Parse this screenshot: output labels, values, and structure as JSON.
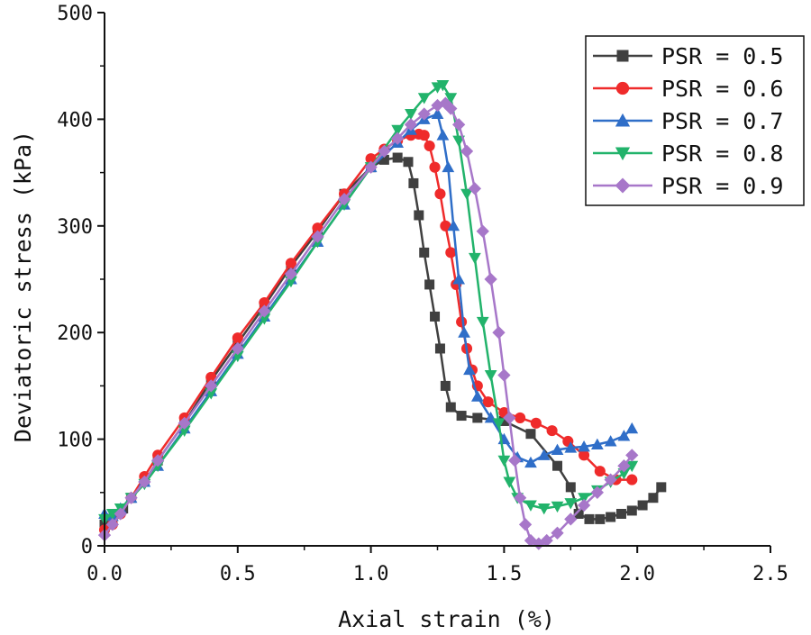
{
  "chart_data": {
    "type": "line",
    "title": "",
    "xlabel": "Axial strain (%)",
    "ylabel": "Deviatoric stress (kPa)",
    "xlim": [
      0,
      2.5
    ],
    "ylim": [
      0,
      500
    ],
    "xticks": [
      0,
      0.5,
      1.0,
      1.5,
      2.0,
      2.5
    ],
    "xtick_labels": [
      "0.0",
      "0.5",
      "1.0",
      "1.5",
      "2.0",
      "2.5"
    ],
    "yticks": [
      0,
      100,
      200,
      300,
      400,
      500
    ],
    "ytick_labels": [
      "0",
      "100",
      "200",
      "300",
      "400",
      "500"
    ],
    "grid": false,
    "legend_position": "top-right",
    "series": [
      {
        "name": "PSR = 0.5",
        "color": "#404040",
        "marker": "square",
        "x": [
          0,
          0.03,
          0.05,
          0.07,
          0.1,
          0.15,
          0.2,
          0.3,
          0.4,
          0.5,
          0.6,
          0.7,
          0.8,
          0.9,
          1.0,
          1.05,
          1.1,
          1.14,
          1.16,
          1.18,
          1.2,
          1.22,
          1.24,
          1.26,
          1.28,
          1.3,
          1.34,
          1.4,
          1.5,
          1.6,
          1.7,
          1.75,
          1.78,
          1.82,
          1.86,
          1.9,
          1.94,
          1.98,
          2.02,
          2.06,
          2.09
        ],
        "y": [
          20,
          25,
          30,
          35,
          45,
          60,
          80,
          115,
          155,
          190,
          225,
          262,
          295,
          330,
          355,
          362,
          364,
          360,
          340,
          310,
          275,
          245,
          215,
          185,
          150,
          130,
          122,
          120,
          117,
          105,
          75,
          55,
          30,
          25,
          25,
          27,
          30,
          33,
          38,
          45,
          55
        ]
      },
      {
        "name": "PSR = 0.6",
        "color": "#ef2b2b",
        "marker": "circle",
        "x": [
          0,
          0.03,
          0.06,
          0.1,
          0.15,
          0.2,
          0.3,
          0.4,
          0.5,
          0.6,
          0.7,
          0.8,
          0.9,
          1.0,
          1.05,
          1.1,
          1.15,
          1.18,
          1.2,
          1.22,
          1.24,
          1.26,
          1.28,
          1.3,
          1.32,
          1.34,
          1.36,
          1.38,
          1.4,
          1.44,
          1.5,
          1.56,
          1.62,
          1.68,
          1.74,
          1.8,
          1.86,
          1.92,
          1.98
        ],
        "y": [
          15,
          20,
          30,
          45,
          65,
          85,
          120,
          158,
          195,
          228,
          265,
          298,
          330,
          363,
          372,
          380,
          385,
          386,
          385,
          375,
          355,
          330,
          300,
          275,
          245,
          210,
          185,
          165,
          150,
          135,
          125,
          120,
          115,
          108,
          98,
          85,
          70,
          62,
          62
        ]
      },
      {
        "name": "PSR = 0.7",
        "color": "#2f6ec8",
        "marker": "triangle-up",
        "x": [
          0,
          0.03,
          0.06,
          0.1,
          0.15,
          0.2,
          0.3,
          0.4,
          0.5,
          0.6,
          0.7,
          0.8,
          0.9,
          1.0,
          1.1,
          1.15,
          1.2,
          1.25,
          1.27,
          1.29,
          1.31,
          1.33,
          1.35,
          1.37,
          1.4,
          1.45,
          1.5,
          1.55,
          1.6,
          1.65,
          1.7,
          1.75,
          1.8,
          1.85,
          1.9,
          1.95,
          1.98
        ],
        "y": [
          30,
          28,
          35,
          45,
          60,
          75,
          110,
          145,
          180,
          215,
          250,
          285,
          320,
          355,
          378,
          390,
          400,
          405,
          385,
          355,
          300,
          250,
          200,
          165,
          140,
          120,
          100,
          83,
          78,
          85,
          90,
          92,
          93,
          95,
          98,
          103,
          110
        ]
      },
      {
        "name": "PSR = 0.8",
        "color": "#22b36b",
        "marker": "triangle-down",
        "x": [
          0,
          0.03,
          0.06,
          0.1,
          0.15,
          0.2,
          0.3,
          0.4,
          0.5,
          0.6,
          0.7,
          0.8,
          0.9,
          1.0,
          1.1,
          1.15,
          1.2,
          1.25,
          1.27,
          1.3,
          1.33,
          1.36,
          1.39,
          1.42,
          1.45,
          1.48,
          1.5,
          1.52,
          1.55,
          1.6,
          1.65,
          1.7,
          1.75,
          1.8,
          1.85,
          1.9,
          1.95,
          1.98
        ],
        "y": [
          25,
          30,
          35,
          45,
          58,
          75,
          108,
          143,
          178,
          213,
          248,
          285,
          320,
          355,
          390,
          405,
          420,
          430,
          432,
          420,
          380,
          330,
          270,
          210,
          160,
          115,
          80,
          60,
          45,
          38,
          35,
          37,
          40,
          45,
          52,
          60,
          68,
          75
        ]
      },
      {
        "name": "PSR = 0.9",
        "color": "#a777c9",
        "marker": "diamond",
        "x": [
          0,
          0.03,
          0.06,
          0.1,
          0.15,
          0.2,
          0.3,
          0.4,
          0.5,
          0.6,
          0.7,
          0.8,
          0.9,
          1.0,
          1.05,
          1.1,
          1.15,
          1.2,
          1.25,
          1.28,
          1.3,
          1.33,
          1.36,
          1.39,
          1.42,
          1.45,
          1.48,
          1.5,
          1.52,
          1.54,
          1.56,
          1.58,
          1.6,
          1.63,
          1.66,
          1.7,
          1.75,
          1.8,
          1.85,
          1.9,
          1.95,
          1.98
        ],
        "y": [
          10,
          20,
          30,
          45,
          60,
          80,
          115,
          150,
          185,
          220,
          255,
          290,
          325,
          355,
          370,
          382,
          395,
          405,
          413,
          415,
          410,
          395,
          370,
          335,
          295,
          250,
          200,
          160,
          120,
          80,
          45,
          20,
          5,
          2,
          5,
          12,
          25,
          38,
          50,
          62,
          75,
          85
        ]
      }
    ]
  }
}
